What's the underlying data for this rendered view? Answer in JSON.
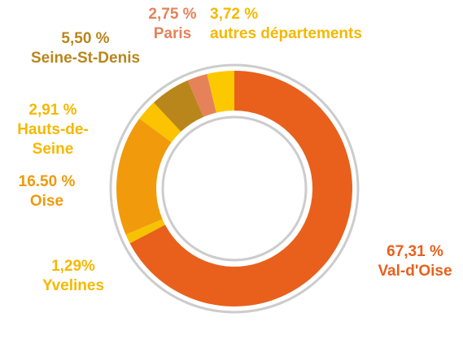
{
  "chart_data": {
    "type": "donut",
    "categories": [
      "Val-d'Oise",
      "Yvelines",
      "Oise",
      "Hauts-de-Seine",
      "Seine-St-Denis",
      "Paris",
      "autres départements"
    ],
    "values": [
      67.31,
      1.29,
      16.5,
      2.91,
      5.5,
      2.75,
      3.72
    ],
    "value_labels": [
      "67,31 %",
      "1,29%",
      "16.50 %",
      "2,91 %",
      "5,50 %",
      "2,75 %",
      "3,72 %"
    ],
    "colors": [
      "#e8601c",
      "#f7c200",
      "#f09a0c",
      "#fbc300",
      "#b8861a",
      "#e5825a",
      "#fcc800"
    ]
  }
}
